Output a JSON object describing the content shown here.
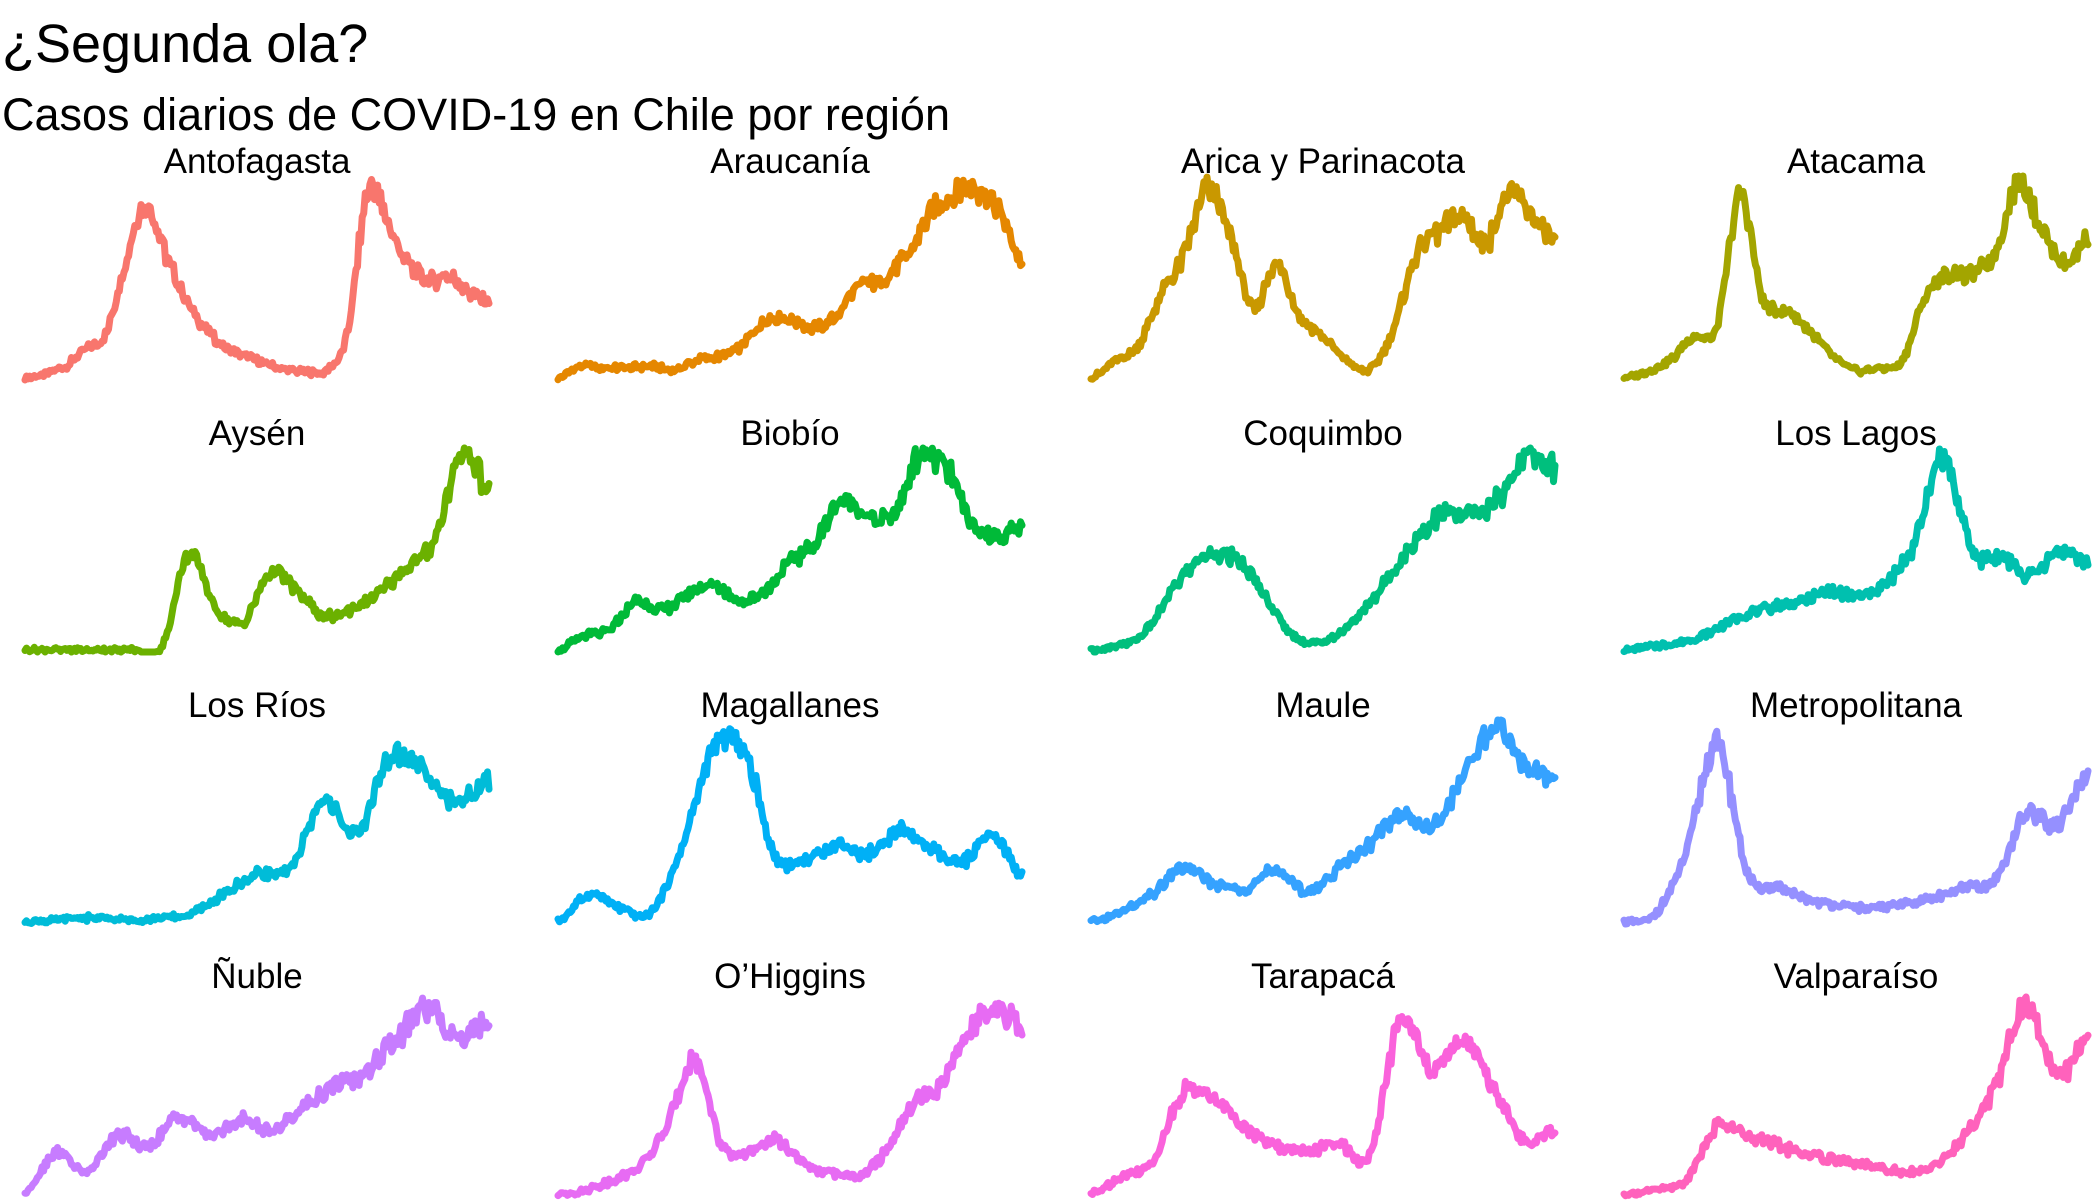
{
  "chart_data": {
    "type": "line",
    "title": "¿Segunda ola?",
    "subtitle": "Casos diarios de COVID-19 en Chile por región",
    "xlabel": "",
    "ylabel": "",
    "grid": false,
    "legend": "none",
    "scales": "free_y",
    "series": [
      {
        "name": "Antofagasta",
        "color": "#F8766D",
        "values": [
          0.01,
          0.03,
          0.07,
          0.15,
          0.23,
          0.6,
          0.88,
          0.62,
          0.4,
          0.25,
          0.16,
          0.12,
          0.08,
          0.05,
          0.04,
          0.05,
          0.24,
          0.95,
          0.78,
          0.58,
          0.5,
          0.52,
          0.44,
          0.4
        ]
      },
      {
        "name": "Araucanía",
        "color": "#E58700",
        "values": [
          0.01,
          0.07,
          0.06,
          0.06,
          0.07,
          0.05,
          0.1,
          0.12,
          0.18,
          0.3,
          0.3,
          0.26,
          0.32,
          0.48,
          0.5,
          0.62,
          0.82,
          0.92,
          0.96,
          0.85,
          0.58
        ]
      },
      {
        "name": "Arica y Parinacota",
        "color": "#C99800",
        "values": [
          0.01,
          0.09,
          0.17,
          0.42,
          0.62,
          0.95,
          0.72,
          0.35,
          0.58,
          0.32,
          0.22,
          0.1,
          0.05,
          0.24,
          0.62,
          0.74,
          0.82,
          0.68,
          0.93,
          0.82,
          0.68
        ]
      },
      {
        "name": "Atacama",
        "color": "#A3A500",
        "values": [
          0.01,
          0.04,
          0.1,
          0.22,
          0.26,
          0.92,
          0.4,
          0.35,
          0.25,
          0.12,
          0.05,
          0.06,
          0.1,
          0.42,
          0.53,
          0.53,
          0.63,
          0.98,
          0.75,
          0.58,
          0.72
        ]
      },
      {
        "name": "Aysén",
        "color": "#6BB100",
        "values": [
          0.01,
          0.01,
          0.01,
          0.01,
          0.01,
          0.02,
          0.48,
          0.22,
          0.15,
          0.4,
          0.3,
          0.18,
          0.22,
          0.3,
          0.42,
          0.56,
          1.0,
          0.8
        ]
      },
      {
        "name": "Biobío",
        "color": "#00BA38",
        "values": [
          0.01,
          0.08,
          0.11,
          0.25,
          0.21,
          0.28,
          0.34,
          0.26,
          0.3,
          0.45,
          0.55,
          0.76,
          0.68,
          0.68,
          0.97,
          0.93,
          0.65,
          0.58,
          0.62
        ]
      },
      {
        "name": "Coquimbo",
        "color": "#00BF7D",
        "values": [
          0.01,
          0.03,
          0.12,
          0.35,
          0.48,
          0.46,
          0.28,
          0.08,
          0.05,
          0.15,
          0.32,
          0.52,
          0.68,
          0.68,
          0.76,
          0.98,
          0.92
        ]
      },
      {
        "name": "Los Lagos",
        "color": "#00C0AF",
        "values": [
          0.01,
          0.03,
          0.05,
          0.1,
          0.18,
          0.22,
          0.25,
          0.3,
          0.28,
          0.34,
          0.54,
          0.98,
          0.5,
          0.48,
          0.38,
          0.5,
          0.45
        ]
      },
      {
        "name": "Los Ríos",
        "color": "#00BCD8",
        "values": [
          0.01,
          0.02,
          0.03,
          0.02,
          0.03,
          0.05,
          0.15,
          0.25,
          0.28,
          0.62,
          0.45,
          0.82,
          0.78,
          0.6,
          0.72
        ]
      },
      {
        "name": "Magallanes",
        "color": "#00B0F6",
        "values": [
          0.01,
          0.15,
          0.08,
          0.06,
          0.38,
          0.86,
          0.88,
          0.35,
          0.32,
          0.4,
          0.35,
          0.46,
          0.38,
          0.3,
          0.44,
          0.25
        ]
      },
      {
        "name": "Maule",
        "color": "#35A2FF",
        "values": [
          0.01,
          0.06,
          0.15,
          0.28,
          0.2,
          0.18,
          0.27,
          0.16,
          0.28,
          0.4,
          0.55,
          0.48,
          0.72,
          0.98,
          0.8,
          0.72
        ]
      },
      {
        "name": "Metropolitana",
        "color": "#9590FF",
        "values": [
          0.01,
          0.05,
          0.35,
          0.9,
          0.25,
          0.18,
          0.12,
          0.09,
          0.08,
          0.1,
          0.13,
          0.18,
          0.22,
          0.55,
          0.5,
          0.72
        ]
      },
      {
        "name": "Ñuble",
        "color": "#C77CFF",
        "values": [
          0.01,
          0.22,
          0.12,
          0.3,
          0.25,
          0.4,
          0.3,
          0.38,
          0.33,
          0.45,
          0.55,
          0.62,
          0.78,
          0.93,
          0.8,
          0.88
        ]
      },
      {
        "name": "O'Higgins",
        "color": "#E76BF3",
        "values": [
          0.01,
          0.03,
          0.08,
          0.15,
          0.35,
          0.68,
          0.25,
          0.22,
          0.28,
          0.16,
          0.12,
          0.1,
          0.22,
          0.45,
          0.55,
          0.82,
          0.92,
          0.85
        ]
      },
      {
        "name": "Tarapacá",
        "color": "#FA62DB",
        "values": [
          0.01,
          0.1,
          0.18,
          0.52,
          0.48,
          0.35,
          0.25,
          0.23,
          0.26,
          0.2,
          0.88,
          0.62,
          0.78,
          0.55,
          0.28,
          0.32
        ]
      },
      {
        "name": "Valparaíso",
        "color": "#FF62BC",
        "values": [
          0.01,
          0.03,
          0.08,
          0.35,
          0.3,
          0.25,
          0.2,
          0.18,
          0.15,
          0.12,
          0.15,
          0.3,
          0.55,
          0.95,
          0.6,
          0.8
        ]
      }
    ]
  }
}
